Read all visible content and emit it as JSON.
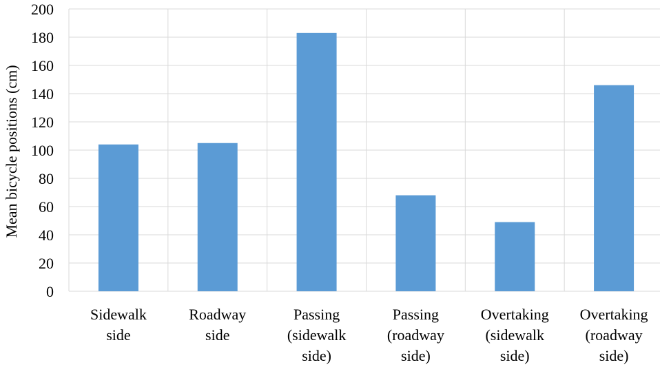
{
  "chart_data": {
    "type": "bar",
    "categories": [
      [
        "Sidewalk",
        "side"
      ],
      [
        "Roadway",
        "side"
      ],
      [
        "Passing",
        "(sidewalk",
        "side)"
      ],
      [
        "Passing",
        "(roadway",
        "side)"
      ],
      [
        "Overtaking",
        "(sidewalk",
        "side)"
      ],
      [
        "Overtaking",
        "(roadway",
        "side)"
      ]
    ],
    "values": [
      104,
      105,
      183,
      68,
      49,
      146
    ],
    "title": "",
    "xlabel": "",
    "ylabel": "Mean bicycle positions (cm)",
    "ylim": [
      0,
      200
    ],
    "yticks": [
      0,
      20,
      40,
      60,
      80,
      100,
      120,
      140,
      160,
      180,
      200
    ],
    "grid": true,
    "bar_color": "#5b9bd5",
    "grid_color": "#d9d9d9"
  }
}
